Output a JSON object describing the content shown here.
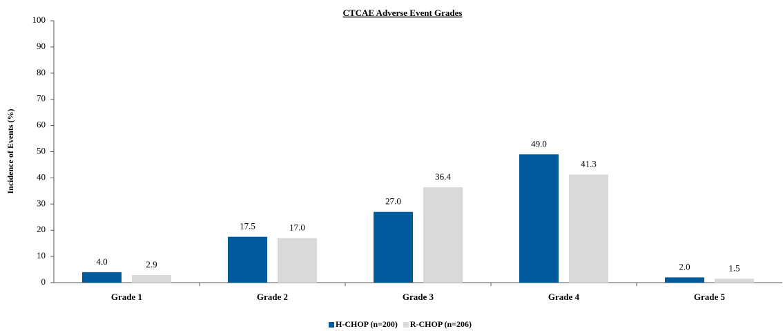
{
  "chart_data": {
    "type": "bar",
    "title": "CTCAE Adverse Event Grades",
    "y_label": "Incidence of Events (%)",
    "categories": [
      "Grade 1",
      "Grade 2",
      "Grade 3",
      "Grade 4",
      "Grade 5"
    ],
    "series": [
      {
        "name": "H-CHOP (n=200)",
        "color": "#005a9c",
        "values": [
          4.0,
          17.5,
          27.0,
          49.0,
          2.0
        ],
        "value_labels": [
          "4.0",
          "17.5",
          "27.0",
          "49.0",
          "2.0"
        ]
      },
      {
        "name": "R-CHOP (n=206)",
        "color": "#d9d9d9",
        "values": [
          2.9,
          17.0,
          36.4,
          41.3,
          1.5
        ],
        "value_labels": [
          "2.9",
          "17.0",
          "36.4",
          "41.3",
          "1.5"
        ]
      }
    ],
    "ylim": [
      0,
      100
    ],
    "yticks": [
      0,
      10,
      20,
      30,
      40,
      50,
      60,
      70,
      80,
      90,
      100
    ],
    "grid": false,
    "legend": "bottom"
  }
}
